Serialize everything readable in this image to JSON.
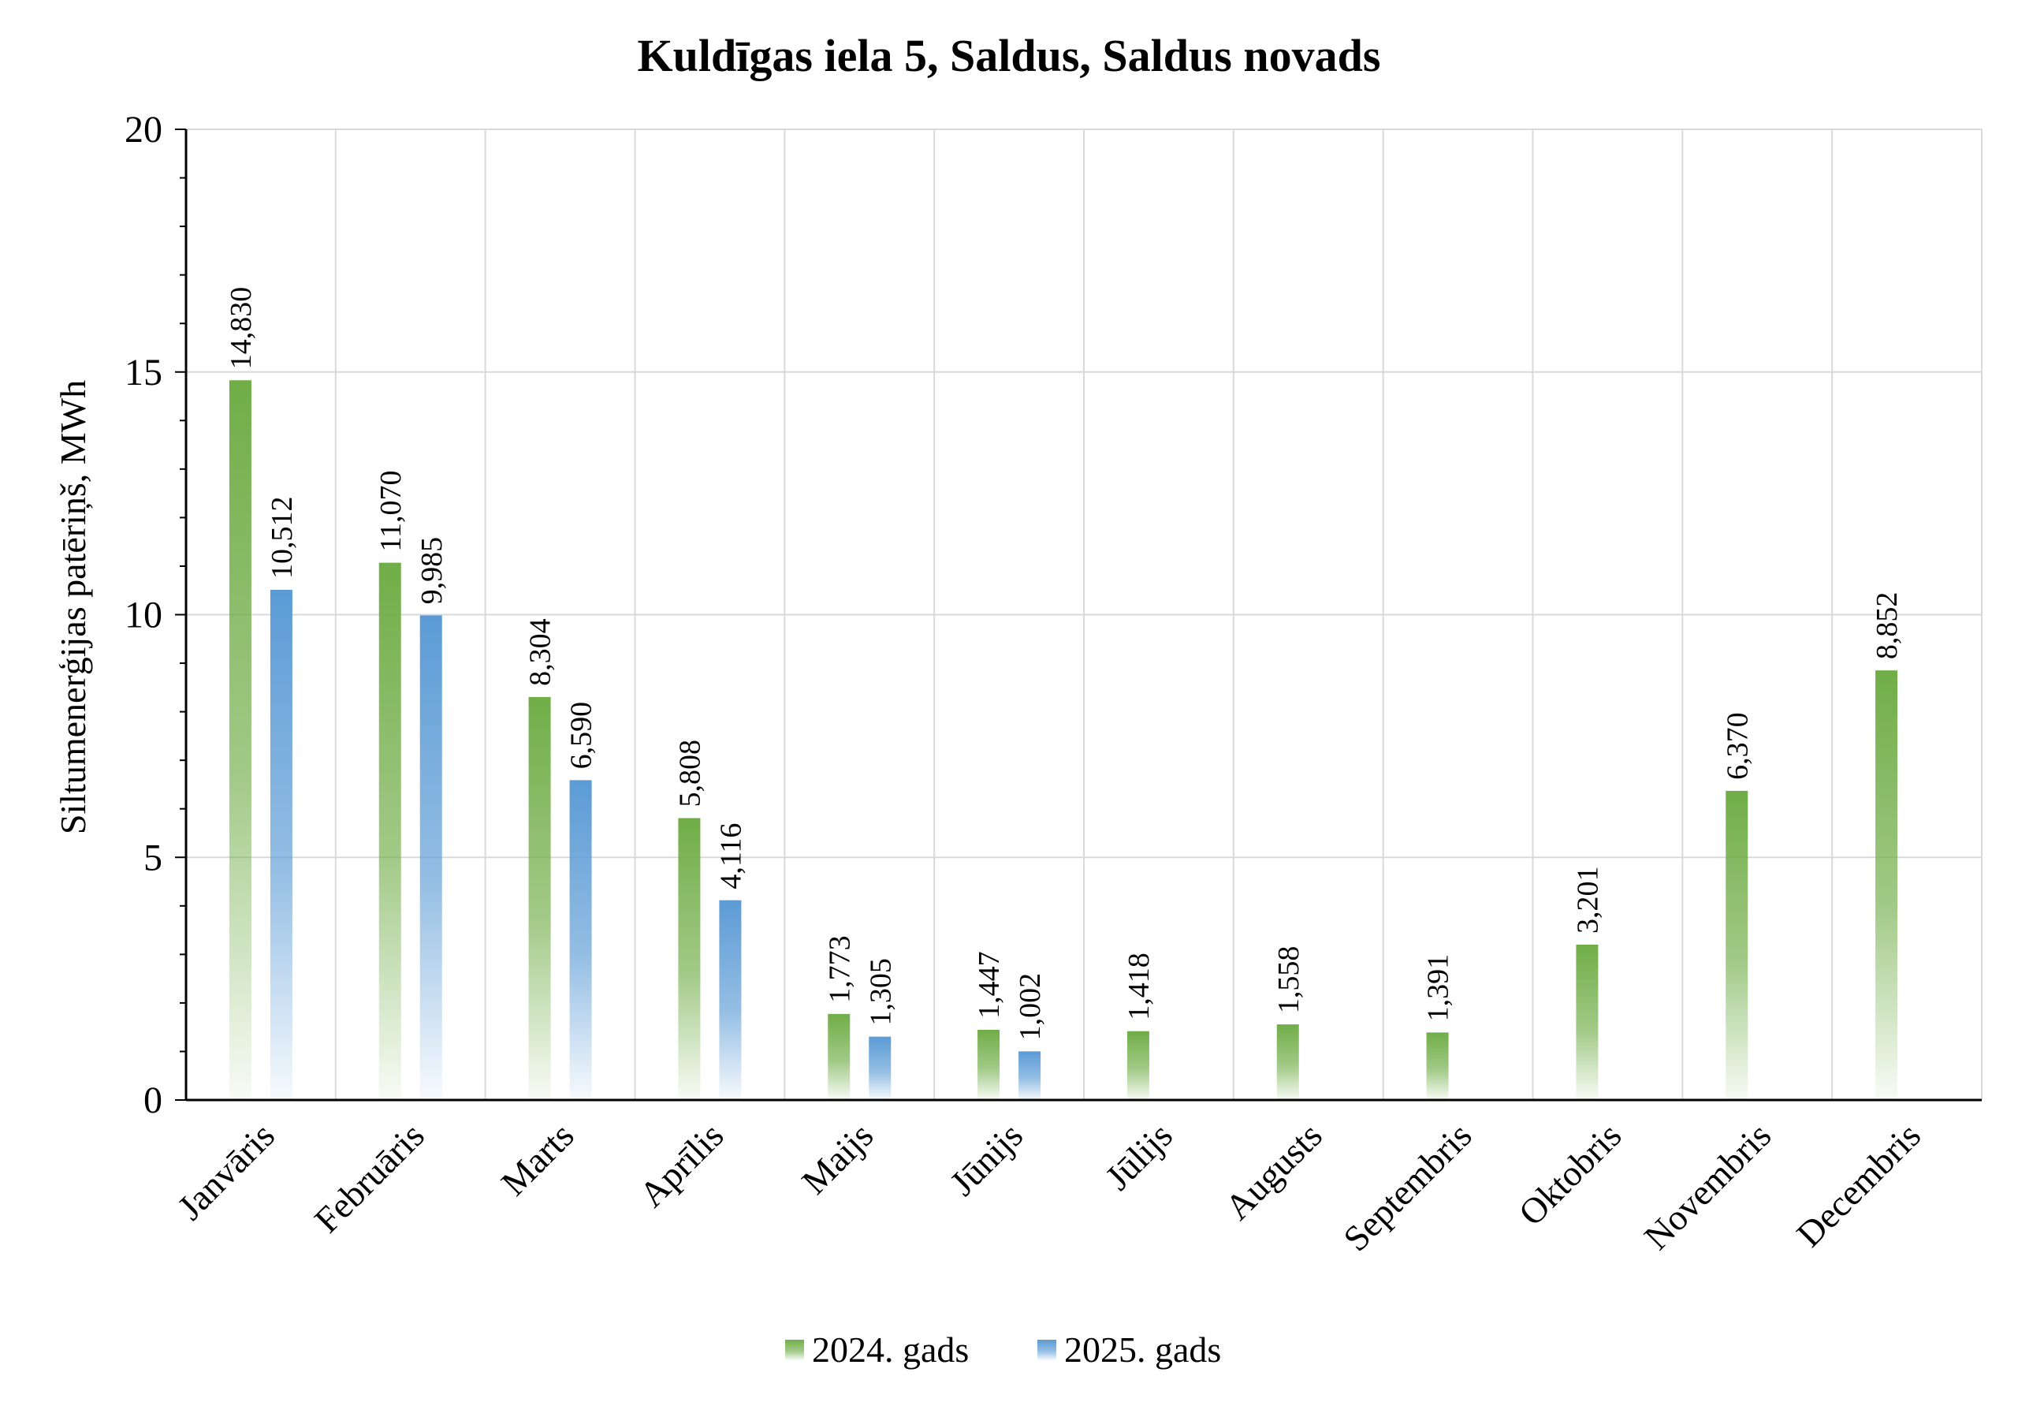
{
  "chart_data": {
    "type": "bar",
    "title": "Kuldīgas iela 5, Saldus, Saldus novads",
    "xlabel": "",
    "ylabel": "Siltumenerģijas patēriņš, MWh",
    "ylim": [
      0,
      20
    ],
    "yticks": [
      0,
      5,
      10,
      15,
      20
    ],
    "grid": true,
    "legend": "bottom",
    "categories": [
      "Janvāris",
      "Februāris",
      "Marts",
      "Aprīlis",
      "Maijs",
      "Jūnijs",
      "Jūlijs",
      "Augusts",
      "Septembris",
      "Oktobris",
      "Novembris",
      "Decembris"
    ],
    "series": [
      {
        "name": "2024. gads",
        "color": "#70ad47",
        "values": [
          14.83,
          11.07,
          8.304,
          5.808,
          1.773,
          1.447,
          1.418,
          1.558,
          1.391,
          3.201,
          6.37,
          8.852
        ],
        "labels": [
          "14,830",
          "11,070",
          "8,304",
          "5,808",
          "1,773",
          "1,447",
          "1,418",
          "1,558",
          "1,391",
          "3,201",
          "6,370",
          "8,852"
        ]
      },
      {
        "name": "2025. gads",
        "color": "#5b9bd5",
        "values": [
          10.512,
          9.985,
          6.59,
          4.116,
          1.305,
          1.002,
          null,
          null,
          null,
          null,
          null,
          null
        ],
        "labels": [
          "10,512",
          "9,985",
          "6,590",
          "4,116",
          "1,305",
          "1,002",
          "",
          "",
          "",
          "",
          "",
          ""
        ]
      }
    ]
  }
}
